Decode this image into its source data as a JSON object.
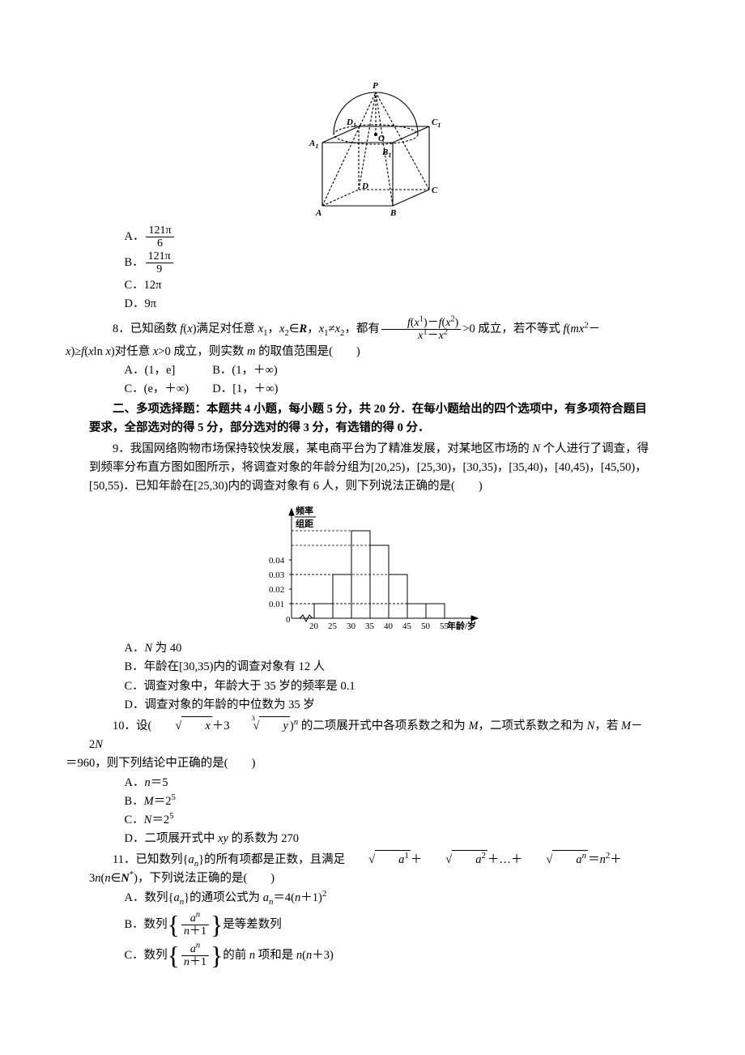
{
  "q7": {
    "optA_label": "A．",
    "optA_num": "121π",
    "optA_den": "6",
    "optB_label": "B．",
    "optB_num": "121π",
    "optB_den": "9",
    "optC": "C．12π",
    "optD": "D．9π",
    "figure": {
      "labels": {
        "P": "P",
        "A": "A",
        "B": "B",
        "C": "C",
        "D": "D",
        "A1": "A",
        "A1_sub": "1",
        "B1": "B",
        "B1_sub": "1",
        "C1": "C",
        "C1_sub": "1",
        "D1": "D",
        "D1_sub": "1",
        "O": "O"
      }
    }
  },
  "q8": {
    "num": "8．",
    "text1": "已知函数 ",
    "fx": "f",
    "text2": "(",
    "xvar": "x",
    "text3": ")满足对任意 ",
    "x1": "x",
    "x1sub": "1",
    "comma1": "，",
    "x2": "x",
    "x2sub": "2",
    "in": "∈",
    "R": "R",
    "comma2": "，",
    "neq": "≠",
    "text4": "，都有",
    "frac_num_a": "f",
    "frac_num_b": "(",
    "frac_num_c": "x",
    "frac_num_sup1": "1",
    "frac_num_d": ")－",
    "frac_num_e": "f",
    "frac_num_f": "(",
    "frac_num_g": "x",
    "frac_num_sup2": "2",
    "frac_num_h": ")",
    "frac_den_a": "x",
    "frac_den_sup1": "1",
    "frac_den_b": "－",
    "frac_den_c": "x",
    "frac_den_sup2": "2",
    "gt0": ">0 成立，若不等式 ",
    "f_mx": "f",
    "lp": "(",
    "m": "m",
    "x2b": "x",
    "sup2": "2",
    "minus": "－",
    "line2_x": "x",
    "rp": ")≥",
    "f2": "f",
    "lp2": "(",
    "x_ln": "x",
    "ln": "ln ",
    "x_ln2": "x",
    "rp2": ")对任意 ",
    "x_gt": "x",
    "gt0b": ">0 成立，则实数 ",
    "m2": "m",
    "text_range": " 的取值范围是(　　)",
    "optA": "A．(1，e]",
    "optB": "B．(1，＋∞)",
    "optC": "C．(e，＋∞)",
    "optD": "D．[1，＋∞)"
  },
  "section2": {
    "title": "二、多项选择题：本题共 4 小题，每小题 5 分，共 20 分．在每小题给出的四个选项中，有多项符合题目要求，全部选对的得 5 分，部分选对的得 3 分，有选错的得 0 分．"
  },
  "q9": {
    "num": "9．",
    "text": "我国网络购物市场保持较快发展，某电商平台为了精准发展，对某地区市场的 ",
    "N": "N",
    "text2": " 个人进行了调查，得到频率分布直方图如图所示，将调查对象的年龄分组为[20,25)，[25,30)，[30,35)，[35,40)，[40,45)，[45,50)，[50,55)．已知年龄在[25,30)内的调查对象有 6 人，则下列说法正确的是(　　)",
    "optA_pre": "A．",
    "optA_N": "N",
    "optA_post": " 为 40",
    "optB": "B．年龄在[30,35)内的调查对象有 12 人",
    "optC": "C．调查对象中，年龄大于 35 岁的频率是 0.1",
    "optD": "D．调查对象的年龄的中位数为 35 岁",
    "histogram": {
      "y_label_top": "频率",
      "y_label_bot": "组距",
      "x_label": "年龄/岁",
      "x_ticks": [
        "20",
        "25",
        "30",
        "35",
        "40",
        "45",
        "50",
        "55"
      ],
      "y_ticks": [
        "0.01",
        "0.02",
        "0.03",
        "0.04"
      ],
      "bars": [
        0.01,
        0.03,
        0.06,
        0.05,
        0.03,
        0.01,
        0.01
      ],
      "bar_color": "#ffffff",
      "line_color": "#000000"
    }
  },
  "q10": {
    "num": "10．",
    "text1": "设(",
    "sqrt_x": "x",
    "plus": "＋3",
    "cbrt_idx": "3",
    "cbrt_y": "y",
    "text2": ")",
    "sup_n": "n",
    "text3": " 的二项展开式中各项系数之和为 ",
    "M": "M",
    "text4": "，二项式系数之和为 ",
    "N": "N",
    "text5": "，若 ",
    "M2": "M",
    "minus": "－2",
    "N2": "N",
    "eq960": "＝960，则下列结论中正确的是(　　)",
    "optA_pre": "A．",
    "optA_n": "n",
    "optA_post": "＝5",
    "optB_pre": "B．",
    "optB_M": "M",
    "optB_post": "＝2",
    "optB_sup": "5",
    "optC_pre": "C．",
    "optC_N": "N",
    "optC_post": "＝2",
    "optC_sup": "5",
    "optD_pre": "D．二项展开式中 ",
    "optD_xy": "xy",
    "optD_post": " 的系数为 270"
  },
  "q11": {
    "num": "11．",
    "text1": "已知数列{",
    "an": "a",
    "an_sub": "n",
    "text2": "}的所有项都是正数，且满足",
    "sum_terms": "＋",
    "dots": "＋…＋",
    "eq": "＝",
    "n2": "n",
    "sup2": "2",
    "plus3n": "＋3",
    "n": "n",
    "in_N": "(",
    "n3": "n",
    "in": "∈",
    "Nstar": "N",
    "star": "*",
    "rp": ")，下列说法正确的是(　　)",
    "optA_pre": "A．数列{",
    "optA_a": "a",
    "optA_sub": "n",
    "optA_mid": "}的通项公式为 ",
    "optA_a2": "a",
    "optA_sub2": "n",
    "optA_eq": "＝4(",
    "optA_n": "n",
    "optA_post": "＋1)",
    "optA_sup": "2",
    "optB_pre": "B．数列",
    "optB_frac_num_a": "a",
    "optB_frac_num_sup": "n",
    "optB_frac_den_n": "n",
    "optB_frac_den_p1": "＋1",
    "optB_post": "是等差数列",
    "optC_pre": "C．数列",
    "optC_post_pre": "的前 ",
    "optC_n": "n",
    "optC_post_mid": " 项和是 ",
    "optC_n2": "n",
    "optC_lp": "(",
    "optC_n3": "n",
    "optC_p3": "＋3)"
  }
}
